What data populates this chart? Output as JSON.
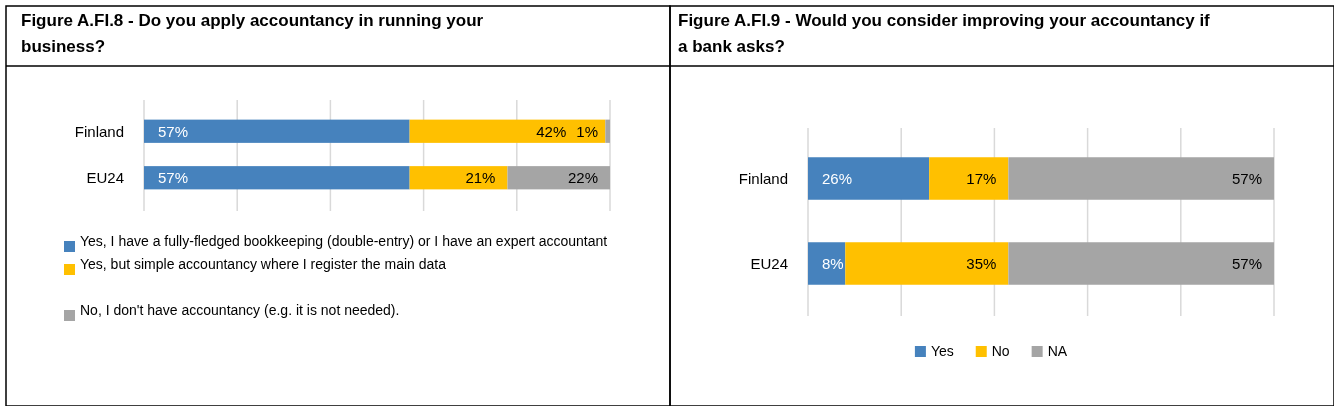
{
  "chart_data": [
    {
      "type": "bar",
      "orientation": "horizontal",
      "stacked": true,
      "title": "Figure A.FI.8 - Do you apply accountancy in running your business?",
      "categories": [
        "Finland",
        "EU24"
      ],
      "series": [
        {
          "name": "Yes, I have a fully-fledged bookkeeping (double-entry) or I have an expert accountant",
          "color": "#4682bd",
          "values": [
            57,
            57
          ],
          "value_labels": [
            "57%",
            "57%"
          ]
        },
        {
          "name": "Yes, but simple accountancy where I register the main data",
          "color": "#ffc000",
          "values": [
            42,
            21
          ],
          "value_labels": [
            "42%",
            "21%"
          ]
        },
        {
          "name": "No, I don't have accountancy (e.g. it is not needed).",
          "color": "#a5a5a5",
          "values": [
            1,
            22
          ],
          "value_labels": [
            "1%",
            "22%"
          ]
        }
      ],
      "xlim": [
        0,
        100
      ],
      "xticks": [
        {
          "value": 0,
          "label": null
        },
        {
          "value": 20,
          "label": null
        },
        {
          "value": 40,
          "label": null
        },
        {
          "value": 60,
          "label": null
        },
        {
          "value": 80,
          "label": null
        },
        {
          "value": 100,
          "label": null
        }
      ],
      "grid": "x",
      "tick_labels": "y",
      "legend": "bottom"
    },
    {
      "type": "bar",
      "orientation": "horizontal",
      "stacked": true,
      "title": "Figure A.FI.9 - Would you consider improving your accountancy if a bank asks?",
      "categories": [
        "Finland",
        "EU24"
      ],
      "series": [
        {
          "name": "Yes",
          "color": "#4682bd",
          "values": [
            26,
            8
          ],
          "value_labels": [
            "26%",
            "8%"
          ]
        },
        {
          "name": "No",
          "color": "#ffc000",
          "values": [
            17,
            35
          ],
          "value_labels": [
            "17%",
            "35%"
          ]
        },
        {
          "name": "NA",
          "color": "#a5a5a5",
          "values": [
            57,
            57
          ],
          "value_labels": [
            "57%",
            "57%"
          ]
        }
      ],
      "xlim": [
        0,
        100
      ],
      "xticks": [
        {
          "value": 0,
          "label": null
        },
        {
          "value": 20,
          "label": null
        },
        {
          "value": 40,
          "label": null
        },
        {
          "value": 60,
          "label": null
        },
        {
          "value": 80,
          "label": null
        },
        {
          "value": 100,
          "label": null
        }
      ],
      "grid": "x",
      "tick_labels": "y",
      "legend": "bottom"
    }
  ]
}
